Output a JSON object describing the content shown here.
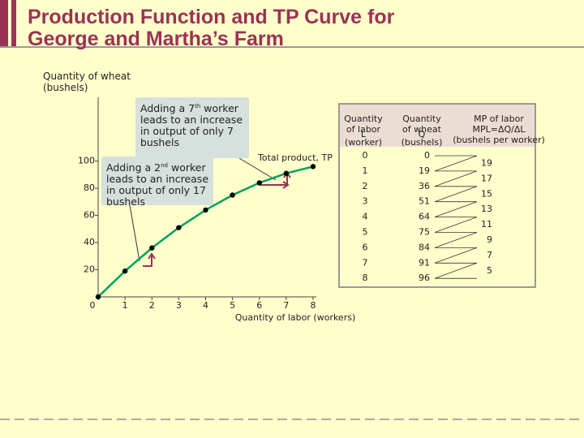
{
  "chart_data": {
    "type": "line",
    "title": [
      "Production Function and TP Curve for",
      "George and Martha’s Farm"
    ],
    "x_label": "Quantity of labor (workers)",
    "y_label": "Quantity of wheat (bushels)",
    "x": [
      0,
      1,
      2,
      3,
      4,
      5,
      6,
      7,
      8
    ],
    "xlim": [
      0,
      8
    ],
    "xticks": [
      0,
      1,
      2,
      3,
      4,
      5,
      6,
      7,
      8
    ],
    "ylim": [
      0,
      147
    ],
    "yticks": [
      20,
      40,
      60,
      80,
      100
    ],
    "series": [
      {
        "name": "Total product, TP",
        "color": "#00a060",
        "values": [
          0,
          19,
          36,
          51,
          64,
          75,
          84,
          91,
          96
        ]
      }
    ],
    "annotations": [
      {
        "parts": [
          "Adding a 7",
          "th",
          "worker leads to an increase in output of only 7 bushels"
        ]
      },
      {
        "parts": [
          "Adding a 2",
          "nd",
          "worker leads to an increase in output of only 17 bushels"
        ]
      }
    ]
  },
  "table": {
    "headers": [
      [
        "Quantity",
        "of labor",
        "L",
        "(worker)"
      ],
      [
        "Quantity",
        "of wheat",
        "Q",
        "(bushels)"
      ],
      [
        "MP of labor",
        "MPL=ΔQ/ΔL",
        "(bushels per worker)"
      ]
    ],
    "mpl": [
      19,
      17,
      15,
      13,
      11,
      9,
      7,
      5
    ]
  }
}
